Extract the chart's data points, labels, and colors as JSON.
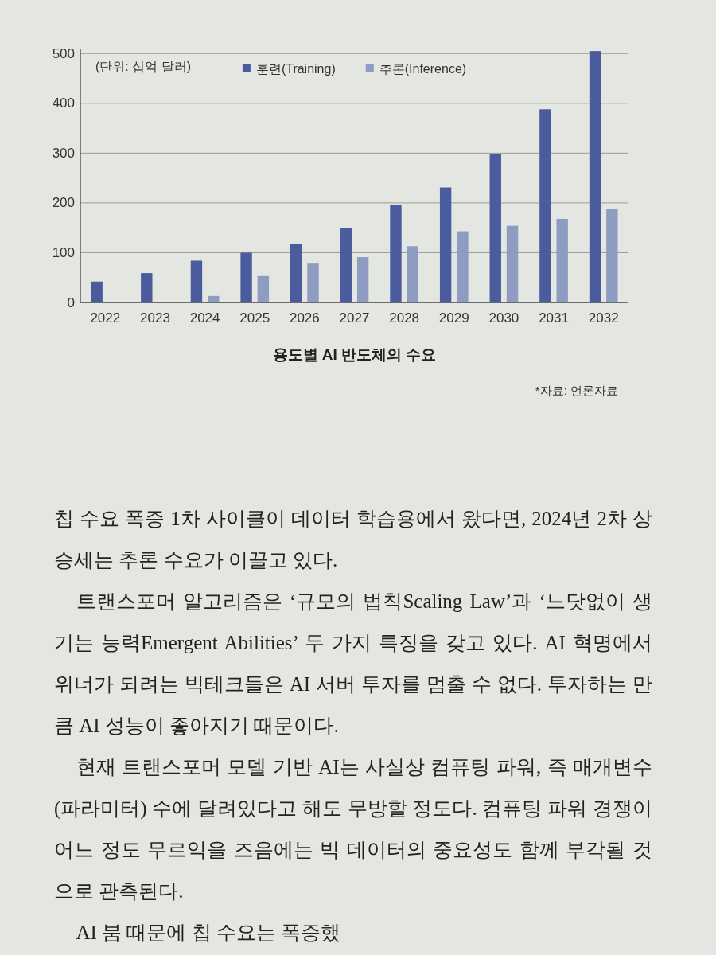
{
  "chart_data": {
    "type": "bar",
    "title": "용도별 AI 반도체의 수요",
    "ylabel": "(단위: 십억 달러)",
    "annotations": [
      "*자료: 언론자료",
      "칩 수요 폭증 1차 사이클이 데이터 학습용에서 왔다면, 2024년 2차 상승세는 추론 수요가 이끌고 있다.",
      "트랜스포머 알고리즘은 ‘규모의 법칙Scaling Law’과 ‘느닷없이 생기는 능력Emergent Abilities’ 두 가지 특징을 갖고 있다. AI 혁명에서 위너가 되려는 빅테크들은 AI 서버 투자를 멈출 수 없다. 투자하는 만큼 AI 성능이 좋아지기 때문이다.",
      "현재 트랜스포머 모델 기반 AI는 사실상 컴퓨팅 파워, 즉 매개변수(파라미터) 수에 달려있다고 해도 무방할 정도다. 컴퓨팅 파워 경쟁이 어느 정도 무르익을 즈음에는 빅 데이터의 중요성도 함께 부각될 것으로 관측된다.",
      "AI 붐 때문에 칩 수요는 폭증했"
    ],
    "categories": [
      "2022",
      "2023",
      "2024",
      "2025",
      "2026",
      "2027",
      "2028",
      "2029",
      "2030",
      "2031",
      "2032"
    ],
    "series": [
      {
        "name": "훈련(Training)",
        "color": "#4a5c9e",
        "values": [
          42,
          59,
          84,
          100,
          118,
          150,
          196,
          231,
          298,
          388,
          505
        ]
      },
      {
        "name": "추론(Inference)",
        "color": "#8e9cc2",
        "values": [
          null,
          null,
          13,
          53,
          78,
          91,
          113,
          143,
          154,
          168,
          188
        ]
      }
    ],
    "ylim": [
      0,
      510
    ],
    "yticks": [
      0,
      100,
      200,
      300,
      400,
      500
    ],
    "grid": "y",
    "legend": "top"
  }
}
